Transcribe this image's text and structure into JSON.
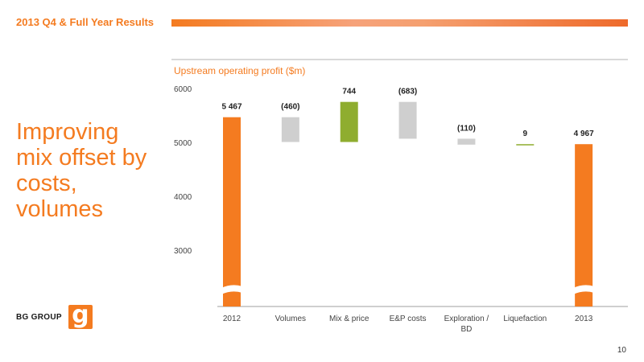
{
  "header": {
    "title": "2013 Q4 & Full Year Results"
  },
  "headline": "Improving mix offset by costs, volumes",
  "logo": {
    "text": "BG GROUP",
    "mark": "g"
  },
  "page_number": "10",
  "colors": {
    "orange": "#f47b20",
    "grey": "#cfcfcf",
    "green": "#8fad2f"
  },
  "chart_data": {
    "type": "bar",
    "title": "Upstream operating profit ($m)",
    "categories": [
      "2012",
      "Volumes",
      "Mix & price",
      "E&P costs",
      "Exploration / BD",
      "Liquefaction",
      "2013"
    ],
    "category_lines": [
      [
        "2012"
      ],
      [
        "Volumes"
      ],
      [
        "Mix & price"
      ],
      [
        "E&P costs"
      ],
      [
        "Exploration /",
        "BD"
      ],
      [
        "Liquefaction"
      ],
      [
        "2013"
      ]
    ],
    "values": [
      5467,
      -460,
      744,
      -683,
      -110,
      9,
      4967
    ],
    "value_labels": [
      "5 467",
      "(460)",
      "744",
      "(683)",
      "(110)",
      "9",
      "4 967"
    ],
    "bar_kinds": [
      "total",
      "decrease",
      "increase",
      "decrease",
      "decrease",
      "increase",
      "total"
    ],
    "yticks": [
      3000,
      4000,
      5000,
      6000
    ],
    "ytick_labels": [
      "3000",
      "4000",
      "5000",
      "6000"
    ],
    "ylim": [
      2000,
      6000
    ],
    "axis_break": true,
    "grid": false,
    "legend": "none"
  }
}
